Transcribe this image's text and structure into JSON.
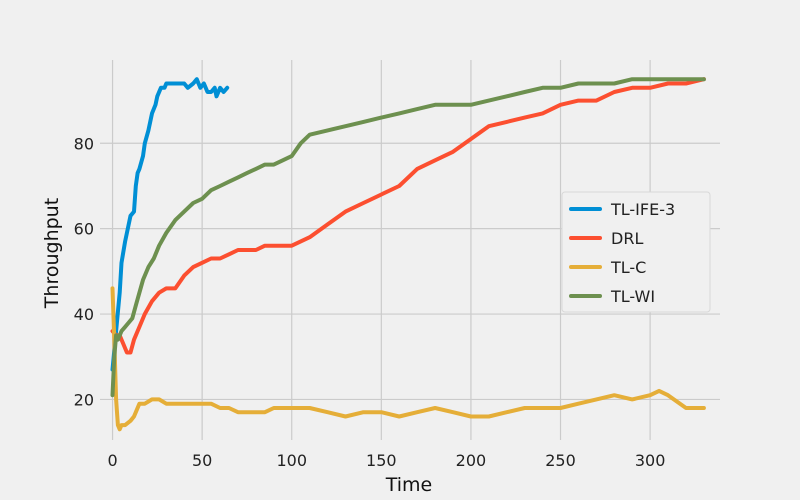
{
  "chart_data": {
    "type": "line",
    "title": "",
    "xlabel": "Time",
    "ylabel": "Throughput",
    "xlim": [
      -7,
      339
    ],
    "ylim": [
      10.5,
      99.5
    ],
    "x_ticks": [
      0,
      50,
      100,
      150,
      200,
      250,
      300
    ],
    "y_ticks": [
      20,
      40,
      60,
      80
    ],
    "grid": true,
    "legend_position": "center-right",
    "series": [
      {
        "name": "TL-IFE-3",
        "color": "#008fd5",
        "x": [
          0,
          2,
          4,
          5,
          7,
          9,
          10,
          12,
          13,
          14,
          15,
          17,
          18,
          20,
          21,
          22,
          24,
          25,
          27,
          29,
          30,
          33,
          35,
          37,
          40,
          42,
          45,
          47,
          49,
          51,
          53,
          55,
          57,
          58,
          60,
          62,
          64
        ],
        "values": [
          27,
          36,
          45,
          52,
          57,
          61,
          63,
          64,
          70,
          73,
          74,
          77,
          80,
          83,
          85,
          87,
          89,
          91,
          93,
          93,
          94,
          94,
          94,
          94,
          94,
          93,
          94,
          95,
          93,
          94,
          92,
          92,
          93,
          91,
          93,
          92,
          93
        ]
      },
      {
        "name": "DRL",
        "color": "#fc4f30",
        "x": [
          0,
          2,
          4,
          6,
          8,
          10,
          12,
          15,
          18,
          22,
          26,
          30,
          35,
          40,
          45,
          50,
          55,
          60,
          65,
          70,
          75,
          80,
          85,
          90,
          95,
          100,
          110,
          120,
          130,
          140,
          150,
          160,
          170,
          180,
          190,
          200,
          210,
          220,
          230,
          240,
          250,
          260,
          270,
          280,
          290,
          300,
          310,
          320,
          330
        ],
        "values": [
          36,
          35,
          35,
          33,
          31,
          31,
          34,
          37,
          40,
          43,
          45,
          46,
          46,
          49,
          51,
          52,
          53,
          53,
          54,
          55,
          55,
          55,
          56,
          56,
          56,
          56,
          58,
          61,
          64,
          66,
          68,
          70,
          74,
          76,
          78,
          81,
          84,
          85,
          86,
          87,
          89,
          90,
          90,
          92,
          93,
          93,
          94,
          94,
          95
        ]
      },
      {
        "name": "TL-C",
        "color": "#e5ae38",
        "x": [
          0,
          1,
          2,
          3,
          4,
          5,
          7,
          10,
          12,
          15,
          18,
          22,
          26,
          30,
          35,
          40,
          45,
          50,
          55,
          60,
          65,
          70,
          75,
          80,
          85,
          90,
          95,
          100,
          110,
          120,
          130,
          140,
          150,
          160,
          170,
          180,
          190,
          200,
          210,
          220,
          230,
          240,
          250,
          260,
          270,
          280,
          290,
          300,
          305,
          310,
          320,
          330
        ],
        "values": [
          46,
          34,
          20,
          14,
          13,
          14,
          14,
          15,
          16,
          19,
          19,
          20,
          20,
          19,
          19,
          19,
          19,
          19,
          19,
          18,
          18,
          17,
          17,
          17,
          17,
          18,
          18,
          18,
          18,
          17,
          16,
          17,
          17,
          16,
          17,
          18,
          17,
          16,
          16,
          17,
          18,
          18,
          18,
          19,
          20,
          21,
          20,
          21,
          22,
          21,
          18,
          18
        ]
      },
      {
        "name": "TL-WI",
        "color": "#6d904f",
        "x": [
          0,
          1,
          2,
          3,
          5,
          7,
          9,
          11,
          13,
          15,
          17,
          20,
          23,
          26,
          30,
          35,
          40,
          45,
          50,
          55,
          60,
          65,
          70,
          75,
          80,
          85,
          90,
          95,
          100,
          105,
          110,
          120,
          130,
          140,
          150,
          160,
          170,
          180,
          190,
          200,
          210,
          220,
          230,
          240,
          250,
          260,
          270,
          280,
          290,
          300,
          310,
          320,
          330
        ],
        "values": [
          21,
          30,
          35,
          34,
          36,
          37,
          38,
          39,
          42,
          45,
          48,
          51,
          53,
          56,
          59,
          62,
          64,
          66,
          67,
          69,
          70,
          71,
          72,
          73,
          74,
          75,
          75,
          76,
          77,
          80,
          82,
          83,
          84,
          85,
          86,
          87,
          88,
          89,
          89,
          89,
          90,
          91,
          92,
          93,
          93,
          94,
          94,
          94,
          95,
          95,
          95,
          95,
          95
        ]
      }
    ]
  }
}
